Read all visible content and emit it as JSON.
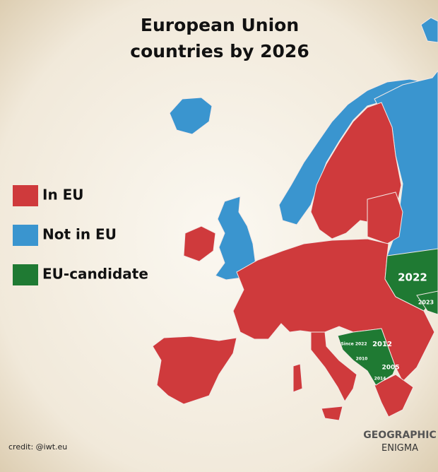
{
  "title_lines": [
    "European Union",
    "countries by 2026"
  ],
  "legend": [
    {
      "label": "In EU",
      "color": "#cf3a3c"
    },
    {
      "label": "Not in EU",
      "color": "#3a95cf"
    },
    {
      "label": "EU-candidate",
      "color": "#1f7a33"
    }
  ],
  "map_labels": [
    "2022",
    "2023",
    "Since 2022",
    "2012",
    "2010",
    "2005",
    "2014"
  ],
  "credit": "credit: @iwt.eu",
  "logo": [
    "GEOGRAPHIC",
    "ENIGMA"
  ]
}
